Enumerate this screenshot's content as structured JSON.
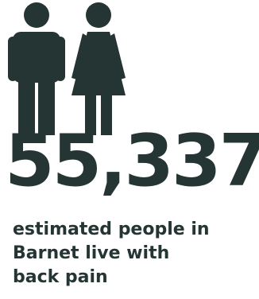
{
  "colors": {
    "ink": "#243534",
    "background": "#ffffff"
  },
  "icons": [
    "male-person-icon",
    "female-person-icon"
  ],
  "statistic": {
    "value": "55,337",
    "caption_lines": [
      "estimated people in",
      "Barnet live with",
      "back pain"
    ]
  }
}
